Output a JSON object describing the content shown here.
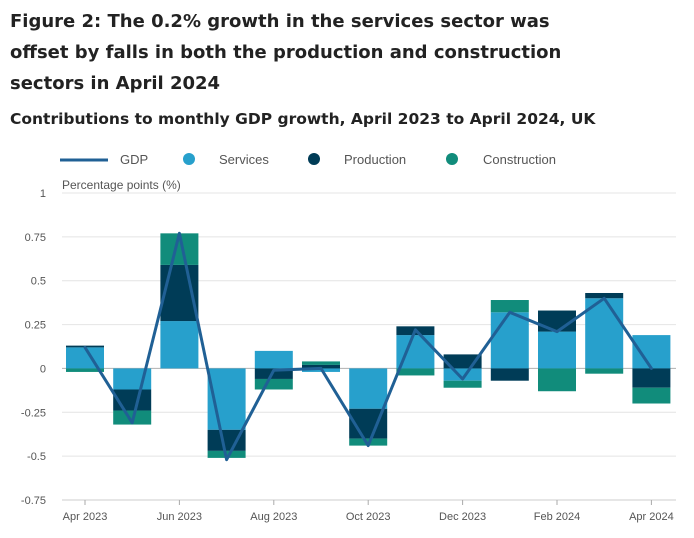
{
  "title": "Figure 2: The 0.2% growth in the services sector was offset by falls in both the production and construction sectors in April 2024",
  "subtitle": "Contributions to monthly GDP growth, April 2023 to April 2024, UK",
  "chart_data": {
    "type": "bar",
    "stacked": true,
    "ylabel": "Percentage points (%)",
    "ylim": [
      -0.75,
      1
    ],
    "yticks": [
      1,
      0.75,
      0.5,
      0.25,
      0,
      -0.25,
      -0.5,
      -0.75
    ],
    "ytick_labels": [
      "1",
      "0.75",
      "0.5",
      "0.25",
      "0",
      "-0.25",
      "-0.5",
      "-0.75"
    ],
    "categories": [
      "Apr 2023",
      "May 2023",
      "Jun 2023",
      "Jul 2023",
      "Aug 2023",
      "Sep 2023",
      "Oct 2023",
      "Nov 2023",
      "Dec 2023",
      "Jan 2024",
      "Feb 2024",
      "Mar 2024",
      "Apr 2024"
    ],
    "xtick_labels": [
      "Apr 2023",
      "Jun 2023",
      "Aug 2023",
      "Oct 2023",
      "Dec 2023",
      "Feb 2024",
      "Apr 2024"
    ],
    "legend": [
      {
        "name": "GDP",
        "kind": "line",
        "color": "#206095"
      },
      {
        "name": "Services",
        "kind": "dot",
        "color": "#27a0cc"
      },
      {
        "name": "Production",
        "kind": "dot",
        "color": "#003c57"
      },
      {
        "name": "Construction",
        "kind": "dot",
        "color": "#118c7b"
      }
    ],
    "series": [
      {
        "name": "Services",
        "color": "#27a0cc",
        "values": [
          0.12,
          -0.12,
          0.27,
          -0.35,
          0.1,
          -0.02,
          -0.23,
          0.19,
          -0.07,
          0.32,
          0.21,
          0.4,
          0.19
        ]
      },
      {
        "name": "Production",
        "color": "#003c57",
        "values": [
          0.01,
          -0.12,
          0.32,
          -0.12,
          -0.06,
          0.02,
          -0.17,
          0.05,
          0.08,
          -0.07,
          0.12,
          0.03,
          -0.11
        ]
      },
      {
        "name": "Construction",
        "color": "#118c7b",
        "values": [
          -0.02,
          -0.08,
          0.18,
          -0.04,
          -0.06,
          0.02,
          -0.04,
          -0.04,
          -0.04,
          0.07,
          -0.13,
          -0.03,
          -0.09
        ]
      }
    ],
    "line_series": {
      "name": "GDP",
      "color": "#206095",
      "values": [
        0.12,
        -0.31,
        0.77,
        -0.52,
        -0.01,
        0.0,
        -0.44,
        0.22,
        -0.06,
        0.32,
        0.21,
        0.4,
        0.0
      ]
    }
  }
}
